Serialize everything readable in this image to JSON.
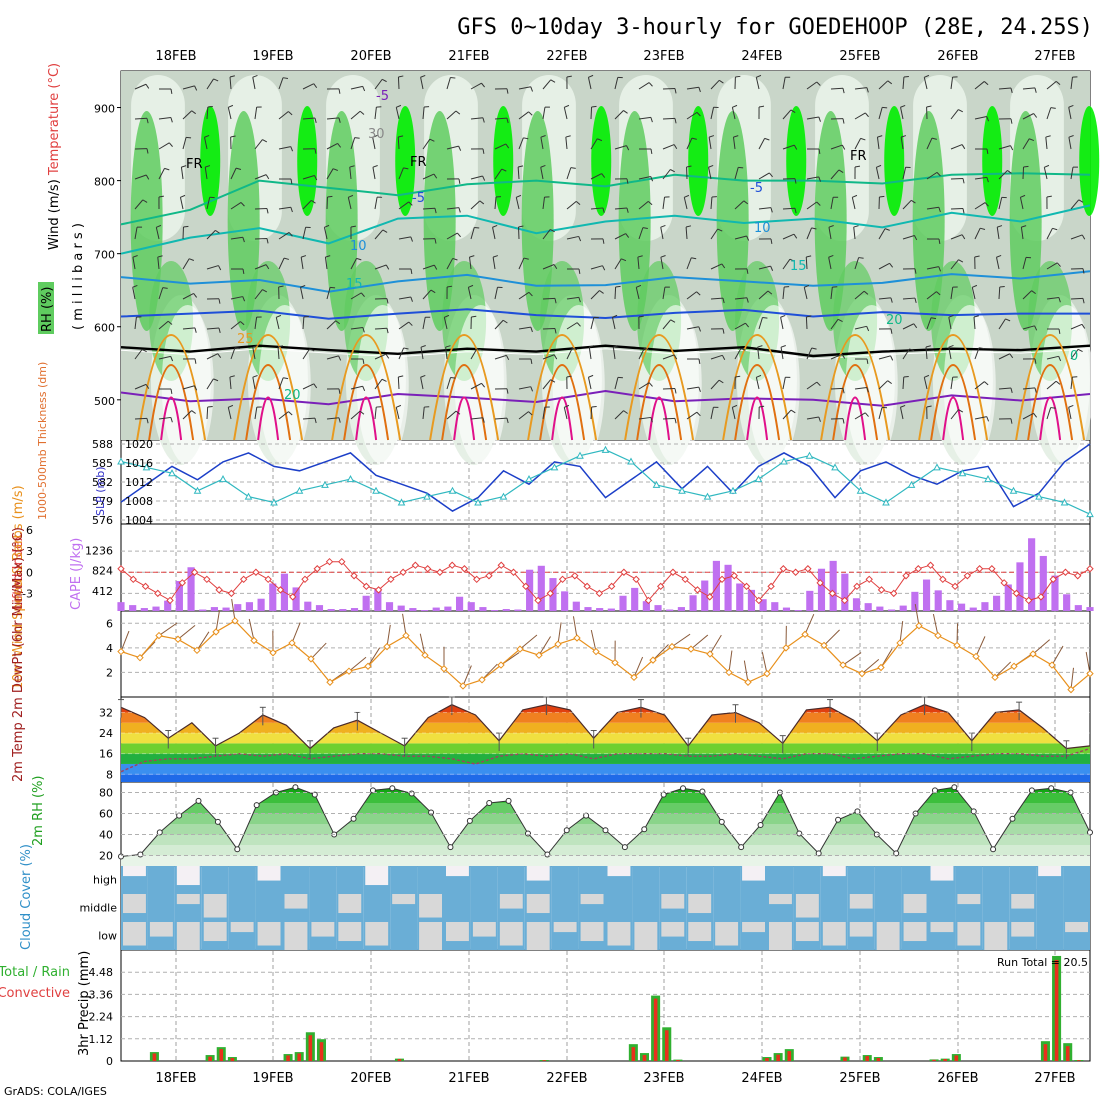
{
  "header": {
    "title": "GFS 0~10day 3-hourly for GOEDEHOOP (28E, 24.25S)",
    "credit": "GrADS: COLA/IGES"
  },
  "chart_data": {
    "type": "meteogram",
    "dates": [
      "18FEB",
      "19FEB",
      "20FEB",
      "21FEB",
      "22FEB",
      "23FEB",
      "24FEB",
      "25FEB",
      "26FEB",
      "27FEB"
    ],
    "colors": {
      "rh_dark": "#94a794",
      "rh_mid": "#c9d6c9",
      "rh_light": "#e6f0e6",
      "rh_green": "#5fcc5f",
      "rh_bright": "#00ee00",
      "temp_cold": "#7a1fb8",
      "temp_freeze": "#000000",
      "temp_blue": "#1f4fd8",
      "temp_lightblue": "#1e90d8",
      "temp_teal": "#10b8b0",
      "temp_green": "#10b888",
      "temp_orange": "#e89a20",
      "temp_dorange": "#e07010",
      "temp_magenta": "#e0108a",
      "slp": "#1c3fc8",
      "thickness": "#30b8c0",
      "lifted": "#e04040",
      "cape": "#c070f0",
      "wind": "#e8901c",
      "barb": "#8a5a3a",
      "rain": "#e8301c",
      "total": "#30b030",
      "cloud": "#6aaed6",
      "cloud_clear": "#f4f0f4",
      "cloud_gap": "#d8d8d8"
    },
    "panels": [
      {
        "id": "upper-air",
        "ylabel_parts": [
          {
            "text": "Wind (m/s)",
            "color": "#000000"
          },
          {
            "text": "Temperature (°C)",
            "color": "#e04040"
          }
        ],
        "unit_label": "( m i l l i b a r s )",
        "rh_label": "RH (%)",
        "y_ticks": [
          "500",
          "600",
          "700",
          "800",
          "900"
        ],
        "y_axis": "pressure (mb), inverted",
        "ylim": [
          445,
          950
        ],
        "isotherm_labels": [
          "-5",
          "FR",
          "FR",
          "FR",
          "-5",
          "-5",
          "10",
          "10",
          "15",
          "15",
          "20",
          "20",
          "25",
          "0",
          "30"
        ],
        "isotherms": [
          {
            "label": "-5",
            "color_key": "temp_cold",
            "values": [
              510,
              498,
              502,
              494,
              508,
              503,
              497,
              512,
              498,
              502,
              500,
              492,
              506,
              499,
              508
            ]
          },
          {
            "label": "FR",
            "color_key": "temp_freeze",
            "values": [
              572,
              566,
              574,
              568,
              563,
              570,
              566,
              574,
              567,
              572,
              560,
              566,
              570,
              568,
              574
            ]
          },
          {
            "label": "-5",
            "color_key": "temp_blue",
            "values": [
              614,
              618,
              622,
              611,
              618,
              624,
              616,
              612,
              619,
              623,
              614,
              620,
              616,
              618,
              618
            ]
          },
          {
            "label": "10",
            "color_key": "temp_lightblue",
            "values": [
              668,
              659,
              664,
              648,
              662,
              671,
              656,
              657,
              668,
              662,
              656,
              660,
              672,
              666,
              676
            ]
          },
          {
            "label": "15",
            "color_key": "temp_teal",
            "values": [
              700,
              722,
              735,
              714,
              748,
              752,
              728,
              744,
              752,
              742,
              748,
              736,
              756,
              744,
              766
            ]
          },
          {
            "label": "20",
            "color_key": "temp_green",
            "values": [
              740,
              760,
              800,
              790,
              780,
              795,
              800,
              792,
              808,
              800,
              800,
              796,
              808,
              810,
              808
            ]
          }
        ]
      },
      {
        "id": "slp-thickness",
        "ylabel_left": "1000-500mb Thickness (dm)",
        "ylabel_right": "SLP (mb)",
        "left_ticks": [
          "588",
          "585",
          "582",
          "579",
          "576"
        ],
        "right_ticks": [
          "1020",
          "1016",
          "1012",
          "1008",
          "1004"
        ],
        "ylim_slp": [
          1004,
          1021
        ],
        "ylim_thickness": [
          575,
          588
        ],
        "slp": [
          1008,
          1012,
          1016,
          1013,
          1017,
          1019,
          1016,
          1015,
          1017,
          1019,
          1014,
          1012,
          1010,
          1006,
          1009,
          1015,
          1012,
          1017,
          1016,
          1009,
          1013,
          1017,
          1011,
          1016,
          1010,
          1016,
          1019,
          1016,
          1009,
          1015,
          1017,
          1014,
          1012,
          1015,
          1016,
          1007,
          1010,
          1017,
          1021
        ],
        "thickness": [
          585,
          584,
          583,
          580,
          582,
          579,
          578,
          580,
          581,
          582,
          580,
          578,
          579,
          580,
          578,
          579,
          582,
          584,
          586,
          587,
          585,
          581,
          580,
          579,
          580,
          582,
          585,
          586,
          584,
          580,
          578,
          581,
          584,
          583,
          582,
          580,
          579,
          578,
          576
        ],
        "marker": "open-triangle"
      },
      {
        "id": "cape-li",
        "ylabel_left": "Lifted Index",
        "ylabel_right": "CAPE (J/kg)",
        "left_ticks": [
          "-3",
          "0",
          "3",
          "6"
        ],
        "right_ticks": [
          "1236",
          "824",
          "412"
        ],
        "ylim_li": [
          -5.5,
          6
        ],
        "ylim_cape": [
          0,
          1648
        ],
        "cape": [
          180,
          120,
          60,
          90,
          210,
          610,
          890,
          30,
          80,
          70,
          140,
          180,
          250,
          560,
          760,
          480,
          190,
          120,
          40,
          40,
          60,
          310,
          460,
          180,
          110,
          60,
          20,
          70,
          90,
          290,
          180,
          80,
          20,
          40,
          30,
          840,
          920,
          670,
          400,
          190,
          80,
          60,
          50,
          310,
          470,
          200,
          120,
          30,
          80,
          320,
          620,
          1020,
          940,
          560,
          430,
          240,
          180,
          70,
          20,
          410,
          860,
          1020,
          760,
          260,
          160,
          90,
          30,
          110,
          390,
          640,
          420,
          220,
          150,
          70,
          180,
          310,
          540,
          990,
          1480,
          1120,
          720,
          340,
          120,
          80
        ],
        "lifted": [
          0.5,
          -1,
          -2,
          -3,
          -4,
          -1.5,
          0,
          -1,
          -2.5,
          -3,
          -1,
          0,
          -1,
          -2.5,
          -3.5,
          -1,
          0.5,
          1.5,
          1.5,
          -0.5,
          -2,
          -2.5,
          -1,
          0,
          1,
          0.5,
          0,
          1,
          0.5,
          -1,
          -0.5,
          1,
          0,
          -2,
          -4,
          -3,
          -1,
          -0.5,
          -2,
          -3,
          -2,
          0,
          -1,
          -4,
          -2,
          0,
          -1,
          -2.5,
          -3.5,
          -1,
          -0.5,
          -2,
          -4,
          -2,
          0.5,
          0,
          0.5,
          -1.5,
          -3,
          -4,
          -2,
          -1,
          -2.5,
          -3,
          -0.5,
          0.5,
          1,
          -1,
          -2,
          -0.5,
          0.5,
          0.5,
          -1.5,
          -3,
          -4,
          -3.5,
          -1,
          0,
          -0.5,
          0.5
        ]
      },
      {
        "id": "wind10m",
        "ylabel": "10m Wind Speed & Barbs (m/s)",
        "y_ticks": [
          "6",
          "4",
          "2"
        ],
        "ylim": [
          0,
          7
        ],
        "values": [
          3.7,
          3.2,
          5.0,
          4.7,
          3.8,
          5.3,
          6.2,
          4.6,
          3.6,
          4.4,
          3.1,
          1.2,
          2.1,
          2.5,
          4.1,
          5.0,
          3.4,
          2.3,
          0.9,
          1.4,
          2.6,
          3.9,
          3.4,
          4.3,
          4.8,
          3.7,
          2.8,
          1.6,
          3.0,
          4.1,
          3.9,
          3.5,
          2.0,
          1.2,
          1.9,
          4.0,
          5.1,
          4.2,
          2.6,
          1.9,
          2.4,
          4.4,
          5.8,
          5.0,
          4.2,
          3.3,
          1.6,
          2.5,
          3.5,
          2.6,
          0.6,
          1.9
        ]
      },
      {
        "id": "temp2m",
        "ylabel": "2m Temp 2m DewPt (6hr Min/Max) (°C)",
        "y_ticks": [
          "32",
          "24",
          "16",
          "8"
        ],
        "ylim": [
          5,
          38
        ],
        "temp": [
          34,
          30,
          22,
          28,
          19,
          24,
          31,
          27,
          18,
          26,
          29,
          24,
          19,
          30,
          35,
          31,
          21,
          33,
          35,
          33,
          22,
          32,
          34,
          31,
          19,
          31,
          32,
          28,
          20,
          33,
          34,
          29,
          21,
          31,
          35,
          32,
          21,
          32,
          33,
          26,
          18,
          19
        ],
        "dewpoint": [
          9,
          13,
          14,
          14,
          15,
          16,
          15,
          16,
          14,
          15,
          16,
          16,
          15,
          15,
          14,
          12,
          15,
          16,
          15,
          16,
          14,
          16,
          16,
          16,
          15,
          15,
          16,
          15,
          14,
          16,
          16,
          14,
          15,
          16,
          16,
          14,
          15,
          16,
          16,
          15,
          15,
          18
        ]
      },
      {
        "id": "rh2m",
        "ylabel": "2m RH (%)",
        "y_ticks": [
          "80",
          "60",
          "40",
          "20"
        ],
        "ylim": [
          10,
          90
        ],
        "values": [
          19,
          21,
          42,
          58,
          72,
          52,
          26,
          68,
          80,
          85,
          78,
          40,
          55,
          82,
          84,
          79,
          61,
          28,
          53,
          70,
          72,
          41,
          21,
          44,
          58,
          44,
          28,
          45,
          78,
          84,
          81,
          52,
          28,
          49,
          80,
          41,
          22,
          54,
          62,
          40,
          22,
          60,
          82,
          85,
          62,
          26,
          55,
          82,
          84,
          80,
          42
        ]
      },
      {
        "id": "cloud",
        "ylabel": "Cloud Cover (%)",
        "y_ticks": [
          "high",
          "middle",
          "low"
        ],
        "rows": [
          [
            0.4,
            0.9,
            0.2,
            0.6,
            0.9,
            0.3,
            0.5,
            0.9,
            0.7,
            0.2,
            0.8,
            0.9,
            0.4,
            0.6,
            0.9,
            0.3,
            0.7,
            0.8,
            0.4,
            0.9,
            0.6,
            0.9,
            0.5,
            0.3,
            0.9,
            0.7,
            0.4,
            0.8,
            0.5,
            0.9,
            0.3,
            0.6,
            0.8,
            0.9,
            0.4,
            0.7
          ],
          [
            0.2,
            0.6,
            0.4,
            0.1,
            0.7,
            0.5,
            0.3,
            0.8,
            0.2,
            0.6,
            0.4,
            0.1,
            0.5,
            0.7,
            0.3,
            0.2,
            0.6,
            0.4,
            0.8,
            0.5,
            0.3,
            0.2,
            0.6,
            0.7,
            0.4,
            0.1,
            0.5,
            0.3,
            0.7,
            0.2,
            0.6,
            0.4,
            0.5,
            0.3,
            0.6,
            0.8
          ],
          [
            0.1,
            0.3,
            0.0,
            0.2,
            0.4,
            0.1,
            0.0,
            0.3,
            0.2,
            0.1,
            0.5,
            0.0,
            0.2,
            0.3,
            0.1,
            0.0,
            0.4,
            0.2,
            0.1,
            0.0,
            0.3,
            0.2,
            0.1,
            0.4,
            0.0,
            0.2,
            0.1,
            0.3,
            0.0,
            0.2,
            0.4,
            0.1,
            0.0,
            0.3,
            0.6,
            0.4
          ]
        ]
      },
      {
        "id": "precip",
        "ylabel": "3hr Precip (mm)",
        "legend_total": "Total / Rain",
        "legend_conv": "Convective",
        "run_total": "Run Total = 20.5",
        "y_ticks": [
          "4.48",
          "3.36",
          "2.24",
          "1.12",
          "0"
        ],
        "ylim": [
          0,
          5.6
        ],
        "total": [
          0,
          0,
          0,
          0.45,
          0,
          0,
          0,
          0,
          0.3,
          0.7,
          0.2,
          0,
          0,
          0,
          0,
          0.35,
          0.45,
          1.45,
          1.1,
          0,
          0,
          0,
          0,
          0,
          0,
          0.12,
          0,
          0,
          0,
          0,
          0,
          0,
          0,
          0,
          0,
          0,
          0,
          0,
          0.05,
          0,
          0,
          0,
          0,
          0,
          0,
          0,
          0.85,
          0.4,
          3.3,
          1.7,
          0.07,
          0,
          0,
          0,
          0,
          0,
          0,
          0,
          0.2,
          0.4,
          0.6,
          0,
          0,
          0,
          0,
          0.22,
          0,
          0.3,
          0.2,
          0,
          0,
          0,
          0,
          0.08,
          0.12,
          0.35,
          0,
          0,
          0,
          0,
          0,
          0,
          0,
          1.0,
          5.3,
          0.9,
          0.05,
          0
        ],
        "rain": [
          0,
          0,
          0,
          0.38,
          0,
          0,
          0,
          0,
          0.22,
          0.6,
          0.15,
          0,
          0,
          0,
          0,
          0.28,
          0.38,
          1.3,
          0.95,
          0,
          0,
          0,
          0,
          0,
          0,
          0.1,
          0,
          0,
          0,
          0,
          0,
          0,
          0,
          0,
          0,
          0,
          0,
          0,
          0.04,
          0,
          0,
          0,
          0,
          0,
          0,
          0,
          0.7,
          0.3,
          3.15,
          1.55,
          0.05,
          0,
          0,
          0,
          0,
          0,
          0,
          0,
          0.15,
          0.32,
          0.5,
          0,
          0,
          0,
          0,
          0.18,
          0,
          0.25,
          0.15,
          0,
          0,
          0,
          0,
          0.06,
          0.1,
          0.28,
          0,
          0,
          0,
          0,
          0,
          0,
          0,
          0.85,
          5.1,
          0.75,
          0.04,
          0
        ]
      }
    ]
  }
}
